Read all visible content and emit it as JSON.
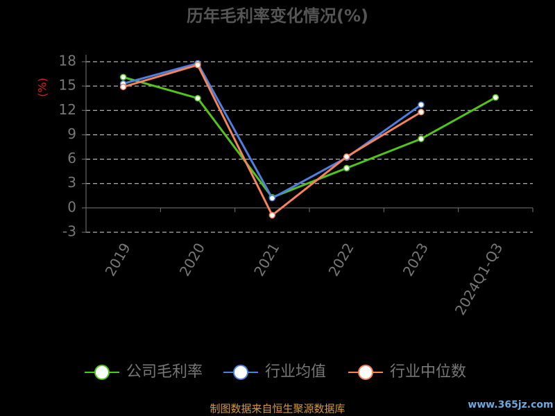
{
  "chart_data": {
    "type": "line",
    "title": "历年毛利率变化情况(%)",
    "y_label": "(%)",
    "categories": [
      "2019",
      "2020",
      "2021",
      "2022",
      "2023",
      "2024Q1-Q3"
    ],
    "series": [
      {
        "name": "公司毛利率",
        "color": "#52c41a",
        "values": [
          16.1,
          13.5,
          1.3,
          4.9,
          8.5,
          13.6
        ]
      },
      {
        "name": "行业均值",
        "color": "#4f7fe0",
        "values": [
          15.3,
          17.8,
          1.2,
          6.2,
          12.7,
          null
        ]
      },
      {
        "name": "行业中位数",
        "color": "#f5845a",
        "values": [
          14.9,
          17.6,
          -0.9,
          6.3,
          11.8,
          null
        ]
      }
    ],
    "ylim": [
      -3,
      18
    ],
    "yticks": [
      -3,
      0,
      3,
      6,
      9,
      12,
      15,
      18
    ],
    "grid": true,
    "source": "制图数据来自恒生聚源数据库",
    "watermark": "www.365jz.com"
  }
}
